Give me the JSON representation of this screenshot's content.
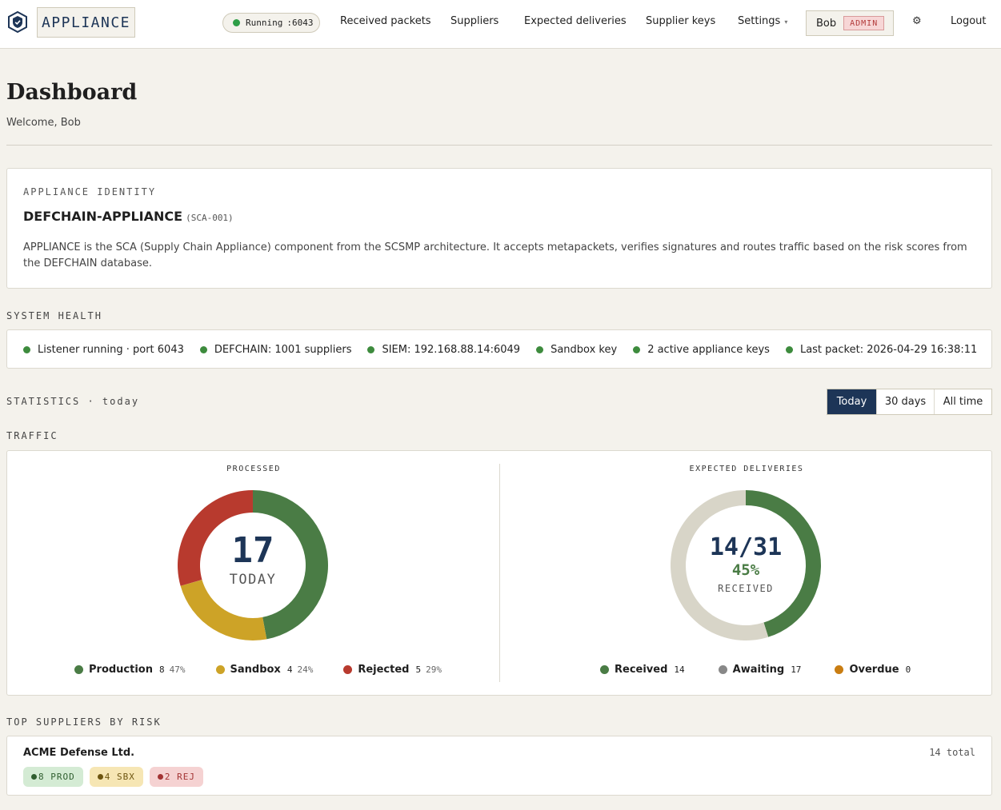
{
  "header": {
    "brand": "APPLIANCE",
    "status_label": "Running",
    "status_port": ":6043",
    "nav": [
      "Received packets",
      "Suppliers",
      "Expected deliveries",
      "Supplier keys",
      "Settings"
    ],
    "user_name": "Bob",
    "user_role": "ADMIN",
    "logout": "Logout"
  },
  "page": {
    "title": "Dashboard",
    "welcome": "Welcome, Bob"
  },
  "identity": {
    "label": "APPLIANCE IDENTITY",
    "name": "DEFCHAIN-APPLIANCE",
    "code": "(SCA-001)",
    "description": "APPLIANCE is the SCA (Supply Chain Appliance) component from the SCSMP architecture. It accepts metapackets, verifies signatures and routes traffic based on the risk scores from the DEFCHAIN database."
  },
  "health": {
    "label": "SYSTEM HEALTH",
    "items": [
      "Listener running · port 6043",
      "DEFCHAIN: 1001 suppliers",
      "SIEM: 192.168.88.14:6049",
      "Sandbox key",
      "2 active appliance keys",
      "Last packet: 2026-04-29 16:38:11"
    ]
  },
  "statistics": {
    "label": "STATISTICS · today",
    "ranges": [
      "Today",
      "30 days",
      "All time"
    ],
    "active_range": "Today"
  },
  "traffic": {
    "label": "TRAFFIC",
    "processed": {
      "title": "PROCESSED",
      "total": "17",
      "caption": "TODAY",
      "segments": [
        {
          "name": "Production",
          "count": 8,
          "pct": "47%",
          "color": "#4a7c45"
        },
        {
          "name": "Sandbox",
          "count": 4,
          "pct": "24%",
          "color": "#cda327"
        },
        {
          "name": "Rejected",
          "count": 5,
          "pct": "29%",
          "color": "#b83a2e"
        }
      ]
    },
    "expected": {
      "title": "EXPECTED DELIVERIES",
      "ratio": "14/31",
      "pct": "45%",
      "caption": "RECEIVED",
      "remainder_color": "#d8d5c8",
      "segments": [
        {
          "name": "Received",
          "count": 14,
          "color": "#4a7c45"
        },
        {
          "name": "Awaiting",
          "count": 17,
          "color": "#888888"
        },
        {
          "name": "Overdue",
          "count": 0,
          "color": "#c97d12"
        }
      ]
    }
  },
  "suppliers": {
    "label": "TOP SUPPLIERS BY RISK",
    "items": [
      {
        "name": "ACME Defense Ltd.",
        "total": "14 total",
        "chips": [
          {
            "text": "8 PROD",
            "bg": "#d4ebd4",
            "fg": "#2f5e2f",
            "dot": "#2f5e2f"
          },
          {
            "text": "4 SBX",
            "bg": "#f6e6b4",
            "fg": "#6d5510",
            "dot": "#6d5510"
          },
          {
            "text": "2 REJ",
            "bg": "#f5d2d2",
            "fg": "#a33434",
            "dot": "#a33434"
          }
        ]
      }
    ]
  }
}
